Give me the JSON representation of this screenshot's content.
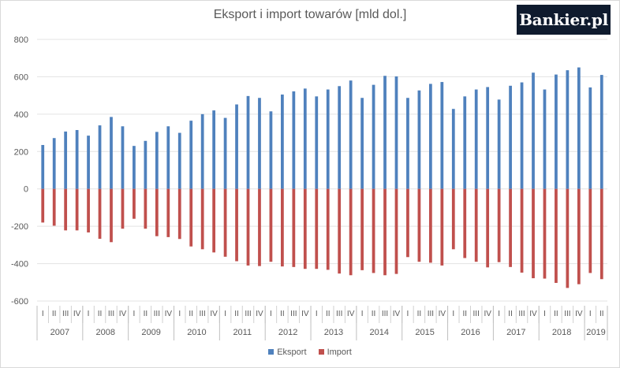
{
  "chart_data": {
    "type": "bar",
    "title": "Eksport i import towarów [mld dol.]",
    "ylim": [
      -600,
      800
    ],
    "yticks": [
      -600,
      -400,
      -200,
      0,
      200,
      400,
      600,
      800
    ],
    "grid": true,
    "legend_position": "bottom",
    "years": [
      {
        "label": "2007",
        "quarters": [
          "I",
          "II",
          "III",
          "IV"
        ]
      },
      {
        "label": "2008",
        "quarters": [
          "I",
          "II",
          "III",
          "IV"
        ]
      },
      {
        "label": "2009",
        "quarters": [
          "I",
          "II",
          "III",
          "IV"
        ]
      },
      {
        "label": "2010",
        "quarters": [
          "I",
          "II",
          "III",
          "IV"
        ]
      },
      {
        "label": "2011",
        "quarters": [
          "I",
          "II",
          "III",
          "IV"
        ]
      },
      {
        "label": "2012",
        "quarters": [
          "I",
          "II",
          "III",
          "IV"
        ]
      },
      {
        "label": "2013",
        "quarters": [
          "I",
          "II",
          "III",
          "IV"
        ]
      },
      {
        "label": "2014",
        "quarters": [
          "I",
          "II",
          "III",
          "IV"
        ]
      },
      {
        "label": "2015",
        "quarters": [
          "I",
          "II",
          "III",
          "IV"
        ]
      },
      {
        "label": "2016",
        "quarters": [
          "I",
          "II",
          "III",
          "IV"
        ]
      },
      {
        "label": "2017",
        "quarters": [
          "I",
          "II",
          "III",
          "IV"
        ]
      },
      {
        "label": "2018",
        "quarters": [
          "I",
          "II",
          "III",
          "IV"
        ]
      },
      {
        "label": "2019",
        "quarters": [
          "I",
          "II"
        ]
      }
    ],
    "series": [
      {
        "name": "Eksport",
        "color": "#4f81bd",
        "values": [
          235,
          272,
          307,
          315,
          285,
          340,
          385,
          335,
          230,
          257,
          305,
          335,
          300,
          365,
          400,
          420,
          380,
          452,
          497,
          487,
          415,
          505,
          522,
          537,
          495,
          532,
          550,
          580,
          487,
          557,
          605,
          602,
          487,
          527,
          562,
          572,
          428,
          495,
          532,
          545,
          478,
          552,
          570,
          622,
          532,
          612,
          635,
          650,
          543,
          610
        ]
      },
      {
        "name": "Import",
        "color": "#c0504d",
        "values": [
          -180,
          -197,
          -222,
          -222,
          -233,
          -267,
          -285,
          -213,
          -160,
          -213,
          -253,
          -258,
          -268,
          -308,
          -323,
          -340,
          -363,
          -387,
          -410,
          -413,
          -390,
          -415,
          -418,
          -428,
          -428,
          -433,
          -453,
          -462,
          -435,
          -450,
          -462,
          -455,
          -365,
          -390,
          -395,
          -410,
          -323,
          -370,
          -390,
          -420,
          -392,
          -418,
          -448,
          -478,
          -480,
          -503,
          -530,
          -510,
          -450,
          -483
        ]
      }
    ]
  },
  "brand_label": "Bankier.pl"
}
